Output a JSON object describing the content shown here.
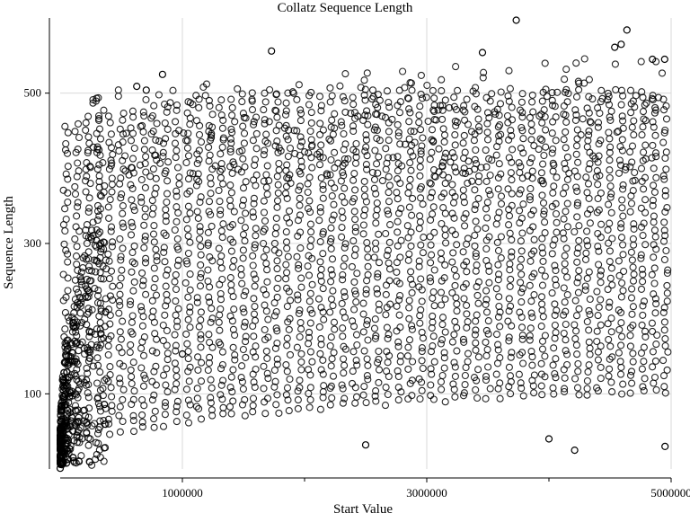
{
  "chart_data": {
    "type": "scatter",
    "title": "Collatz Sequence Length",
    "xlabel": "Start Value",
    "ylabel": "Sequence Length",
    "xlim": [
      0,
      5000000
    ],
    "ylim": [
      0,
      600
    ],
    "x_major_ticks": [
      1000000,
      3000000,
      5000000
    ],
    "x_minor_ticks": [
      2000000,
      4000000
    ],
    "x_tick_labels": [
      "1000000",
      "3000000",
      "5000000"
    ],
    "y_ticks": [
      100,
      300,
      500
    ],
    "y_tick_labels": [
      "100",
      "300",
      "500"
    ],
    "grid": true,
    "legend": "none",
    "marker": "open-circle",
    "colors": {
      "marker": "#000000",
      "grid": "#d9d9d9",
      "axis": "#000000",
      "background": "#ffffff"
    },
    "points": [
      {
        "x": 0,
        "y": 1
      },
      {
        "x": 3732423,
        "y": 597
      },
      {
        "x": 4637979,
        "y": 584
      },
      {
        "x": 4590951,
        "y": 565
      },
      {
        "x": 4537979,
        "y": 561
      },
      {
        "x": 1729557,
        "y": 556
      },
      {
        "x": 3456159,
        "y": 554
      },
      {
        "x": 4846713,
        "y": 545
      },
      {
        "x": 4946713,
        "y": 545
      },
      {
        "x": 837799,
        "y": 525
      },
      {
        "x": 626331,
        "y": 509
      },
      {
        "x": 704623,
        "y": 504
      },
      {
        "x": 4950000,
        "y": 30
      },
      {
        "x": 4210000,
        "y": 25
      },
      {
        "x": 4000000,
        "y": 40
      },
      {
        "x": 2500000,
        "y": 32
      },
      {
        "x": 1000000,
        "y": 153
      }
    ]
  }
}
